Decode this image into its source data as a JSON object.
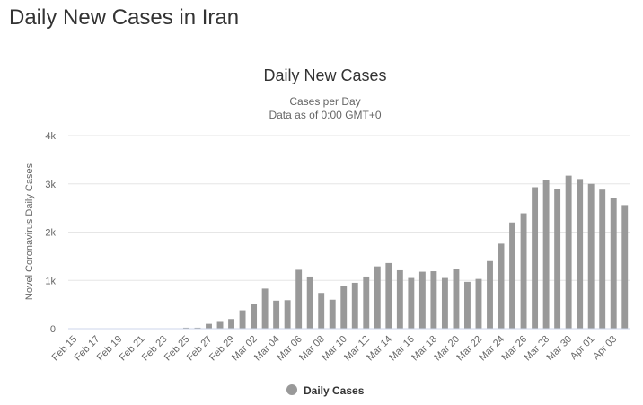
{
  "page": {
    "heading": "Daily New Cases in Iran"
  },
  "chart_data": {
    "type": "bar",
    "title": "Daily New Cases",
    "subtitle_line1": "Cases per Day",
    "subtitle_line2": "Data as of 0:00 GMT+0",
    "xlabel": "",
    "ylabel": "Novel Coronavirus Daily Cases",
    "ylim": [
      0,
      4000
    ],
    "y_ticks": [
      0,
      1000,
      2000,
      3000,
      4000
    ],
    "y_tick_labels": [
      "0",
      "1k",
      "2k",
      "3k",
      "4k"
    ],
    "grid": true,
    "legend_position": "bottom-center",
    "bar_color": "#999999",
    "categories": [
      "Feb 15",
      "Feb 16",
      "Feb 17",
      "Feb 18",
      "Feb 19",
      "Feb 20",
      "Feb 21",
      "Feb 22",
      "Feb 23",
      "Feb 24",
      "Feb 25",
      "Feb 26",
      "Feb 27",
      "Feb 28",
      "Feb 29",
      "Mar 01",
      "Mar 02",
      "Mar 03",
      "Mar 04",
      "Mar 05",
      "Mar 06",
      "Mar 07",
      "Mar 08",
      "Mar 09",
      "Mar 10",
      "Mar 11",
      "Mar 12",
      "Mar 13",
      "Mar 14",
      "Mar 15",
      "Mar 16",
      "Mar 17",
      "Mar 18",
      "Mar 19",
      "Mar 20",
      "Mar 21",
      "Mar 22",
      "Mar 23",
      "Mar 24",
      "Mar 25",
      "Mar 26",
      "Mar 27",
      "Mar 28",
      "Mar 29",
      "Mar 30",
      "Mar 31",
      "Apr 01",
      "Apr 02",
      "Apr 03",
      "Apr 04"
    ],
    "x_tick_labels": [
      "Feb 15",
      "Feb 17",
      "Feb 19",
      "Feb 21",
      "Feb 23",
      "Feb 25",
      "Feb 27",
      "Feb 29",
      "Mar 02",
      "Mar 04",
      "Mar 06",
      "Mar 08",
      "Mar 10",
      "Mar 12",
      "Mar 14",
      "Mar 16",
      "Mar 18",
      "Mar 20",
      "Mar 22",
      "Mar 24",
      "Mar 26",
      "Mar 28",
      "Mar 30",
      "Apr 01",
      "Apr 03"
    ],
    "series": [
      {
        "name": "Daily Cases",
        "values": [
          0,
          0,
          0,
          0,
          0,
          0,
          0,
          0,
          0,
          0,
          20,
          20,
          100,
          140,
          200,
          380,
          520,
          830,
          580,
          590,
          1220,
          1080,
          740,
          600,
          880,
          950,
          1080,
          1290,
          1360,
          1210,
          1050,
          1180,
          1190,
          1050,
          1240,
          970,
          1030,
          1400,
          1760,
          2200,
          2390,
          2930,
          3080,
          2900,
          3170,
          3100,
          3000,
          2880,
          2710,
          2560
        ]
      }
    ]
  }
}
